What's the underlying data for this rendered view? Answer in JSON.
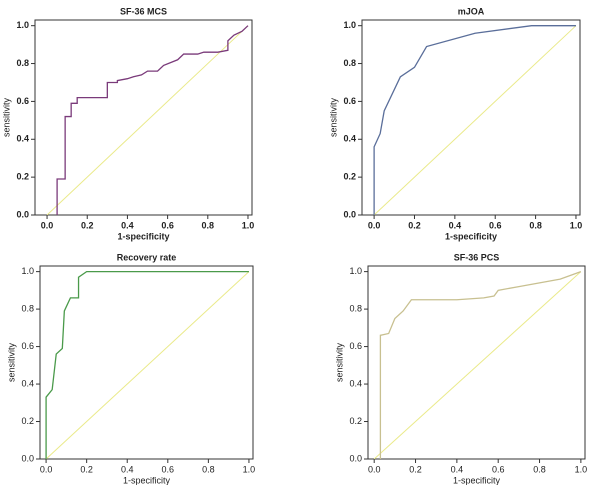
{
  "chart_data": [
    {
      "type": "line",
      "title": "SF-36 MCS",
      "xlabel": "1-specificity",
      "ylabel": "sensitivity",
      "xlim": [
        -0.06,
        1.02
      ],
      "ylim": [
        0,
        1.03
      ],
      "xticks": [
        {
          "value": 0,
          "label": "0.0"
        },
        0.2,
        0.4,
        0.6,
        0.8,
        {
          "value": 1,
          "label": "1.0"
        }
      ],
      "yticks": [
        {
          "value": 0,
          "label": "0.0"
        },
        0.2,
        0.4,
        0.6,
        0.8,
        {
          "value": 1,
          "label": "1.0"
        }
      ],
      "diagonal": true,
      "diagonal_color": "#eaea8a",
      "x": [
        0.05,
        0.05,
        0.09,
        0.09,
        0.12,
        0.12,
        0.15,
        0.15,
        0.3,
        0.3,
        0.35,
        0.35,
        0.4,
        0.43,
        0.47,
        0.5,
        0.55,
        0.58,
        0.65,
        0.68,
        0.75,
        0.78,
        0.85,
        0.9,
        0.9,
        0.93,
        0.97,
        1.0
      ],
      "series": [
        {
          "color": "#7a3a7a",
          "values": [
            0,
            0.19,
            0.19,
            0.52,
            0.52,
            0.59,
            0.59,
            0.62,
            0.62,
            0.7,
            0.7,
            0.71,
            0.72,
            0.73,
            0.74,
            0.76,
            0.76,
            0.79,
            0.82,
            0.85,
            0.85,
            0.86,
            0.86,
            0.87,
            0.92,
            0.95,
            0.97,
            1.0
          ]
        }
      ]
    },
    {
      "type": "line",
      "title": "mJOA",
      "xlabel": "1-specificity",
      "ylabel": "sensitivity",
      "xlim": [
        -0.06,
        1.02
      ],
      "ylim": [
        0,
        1.03
      ],
      "xticks": [
        {
          "value": 0,
          "label": "0.0"
        },
        0.2,
        0.4,
        0.6,
        0.8,
        {
          "value": 1,
          "label": "1.0"
        }
      ],
      "yticks": [
        {
          "value": 0,
          "label": "0.0"
        },
        0.2,
        0.4,
        0.6,
        0.8,
        {
          "value": 1,
          "label": "1.0"
        }
      ],
      "diagonal": true,
      "diagonal_color": "#eaea8a",
      "x": [
        0,
        0,
        0.03,
        0.05,
        0.13,
        0.2,
        0.26,
        0.5,
        0.78,
        1.0
      ],
      "series": [
        {
          "color": "#5a6e9a",
          "values": [
            0,
            0.36,
            0.43,
            0.55,
            0.73,
            0.78,
            0.89,
            0.96,
            1.0,
            1.0
          ]
        }
      ]
    },
    {
      "type": "line",
      "title": "Recovery rate",
      "xlabel": "1-specificity",
      "ylabel": "sensitivity",
      "xlim": [
        -0.03,
        1.02
      ],
      "ylim": [
        0,
        1.03
      ],
      "xticks": [
        {
          "value": 0,
          "label": "0.0"
        },
        0.2,
        0.4,
        0.6,
        0.8,
        {
          "value": 1,
          "label": "1.0"
        }
      ],
      "yticks": [
        {
          "value": 0,
          "label": "0.0"
        },
        0.2,
        0.4,
        0.6,
        0.8,
        {
          "value": 1,
          "label": "1.0"
        }
      ],
      "diagonal": true,
      "diagonal_color": "#eaea8a",
      "x": [
        0,
        0,
        0.03,
        0.05,
        0.08,
        0.09,
        0.12,
        0.16,
        0.16,
        0.2,
        1.0
      ],
      "series": [
        {
          "color": "#4a9a4a",
          "values": [
            0,
            0.33,
            0.37,
            0.56,
            0.59,
            0.79,
            0.86,
            0.86,
            0.97,
            1.0,
            1.0
          ]
        }
      ]
    },
    {
      "type": "line",
      "title": "SF-36 PCS",
      "xlabel": "1-specificity",
      "ylabel": "sensitivity",
      "xlim": [
        -0.03,
        1.02
      ],
      "ylim": [
        0,
        1.03
      ],
      "xticks": [
        {
          "value": 0,
          "label": "0.0"
        },
        0.2,
        0.4,
        0.6,
        0.8,
        {
          "value": 1,
          "label": "1.0"
        }
      ],
      "yticks": [
        {
          "value": 0,
          "label": "0.0"
        },
        0.2,
        0.4,
        0.6,
        0.8,
        {
          "value": 1,
          "label": "1.0"
        }
      ],
      "diagonal": true,
      "diagonal_color": "#eaea8a",
      "x": [
        0.03,
        0.03,
        0.07,
        0.1,
        0.14,
        0.18,
        0.4,
        0.53,
        0.58,
        0.6,
        0.7,
        0.8,
        0.9,
        0.95,
        1.0
      ],
      "series": [
        {
          "color": "#c8c090",
          "values": [
            0,
            0.66,
            0.67,
            0.75,
            0.79,
            0.85,
            0.85,
            0.86,
            0.87,
            0.9,
            0.92,
            0.94,
            0.96,
            0.98,
            1.0
          ]
        }
      ]
    }
  ]
}
